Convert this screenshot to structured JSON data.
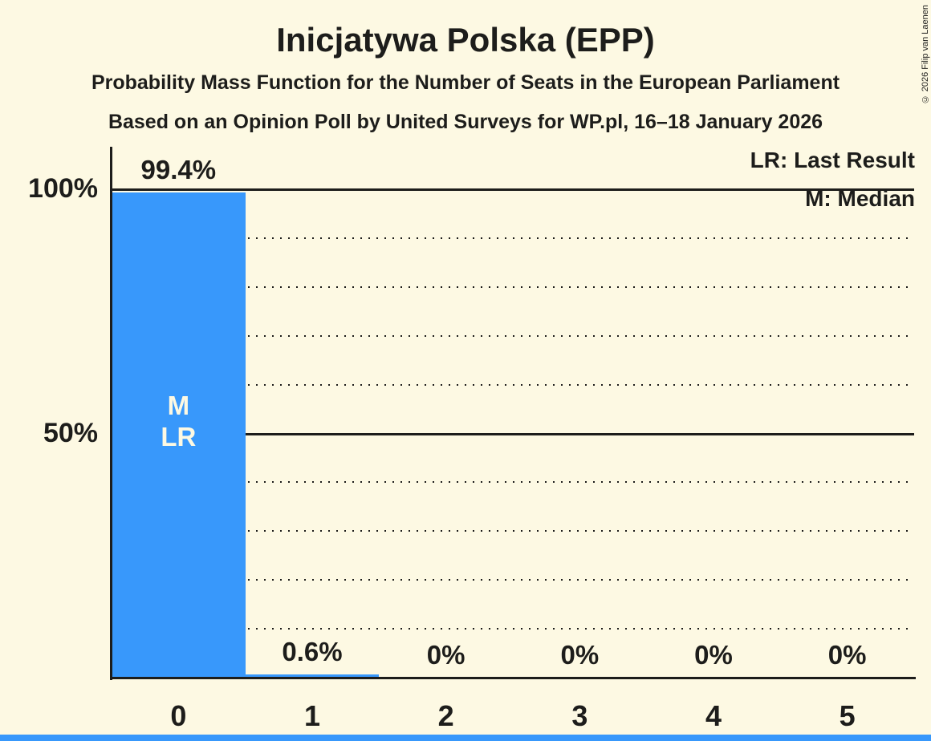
{
  "header": {
    "title": "Inicjatywa Polska (EPP)",
    "subtitle1": "Probability Mass Function for the Number of Seats in the European Parliament",
    "subtitle2": "Based on an Opinion Poll by United Surveys for WP.pl, 16–18 January 2026"
  },
  "copyright": "© 2026 Filip van Laenen",
  "legend": {
    "lr": "LR: Last Result",
    "m": "M: Median"
  },
  "colors": {
    "background": "#FDF9E3",
    "bar": "#3898FB",
    "text": "#1D1D1B",
    "grid": "#1D1D1B",
    "bar_label_text": "#FDF9E3"
  },
  "chart_data": {
    "type": "bar",
    "title": "Inicjatywa Polska (EPP)",
    "categories": [
      "0",
      "1",
      "2",
      "3",
      "4",
      "5"
    ],
    "values": [
      99.4,
      0.6,
      0,
      0,
      0,
      0
    ],
    "value_labels": [
      "99.4%",
      "0.6%",
      "0%",
      "0%",
      "0%",
      "0%"
    ],
    "ylim": [
      0,
      100
    ],
    "yticks": [
      {
        "value": 100,
        "label": "100%"
      },
      {
        "value": 50,
        "label": "50%"
      }
    ],
    "gridlines": {
      "dotted": [
        10,
        20,
        30,
        40,
        60,
        70,
        80,
        90
      ],
      "solid": [
        50,
        100
      ]
    },
    "legend_position": "top-right",
    "annotations": {
      "bar_index": 0,
      "lines": [
        "M",
        "LR"
      ]
    }
  }
}
